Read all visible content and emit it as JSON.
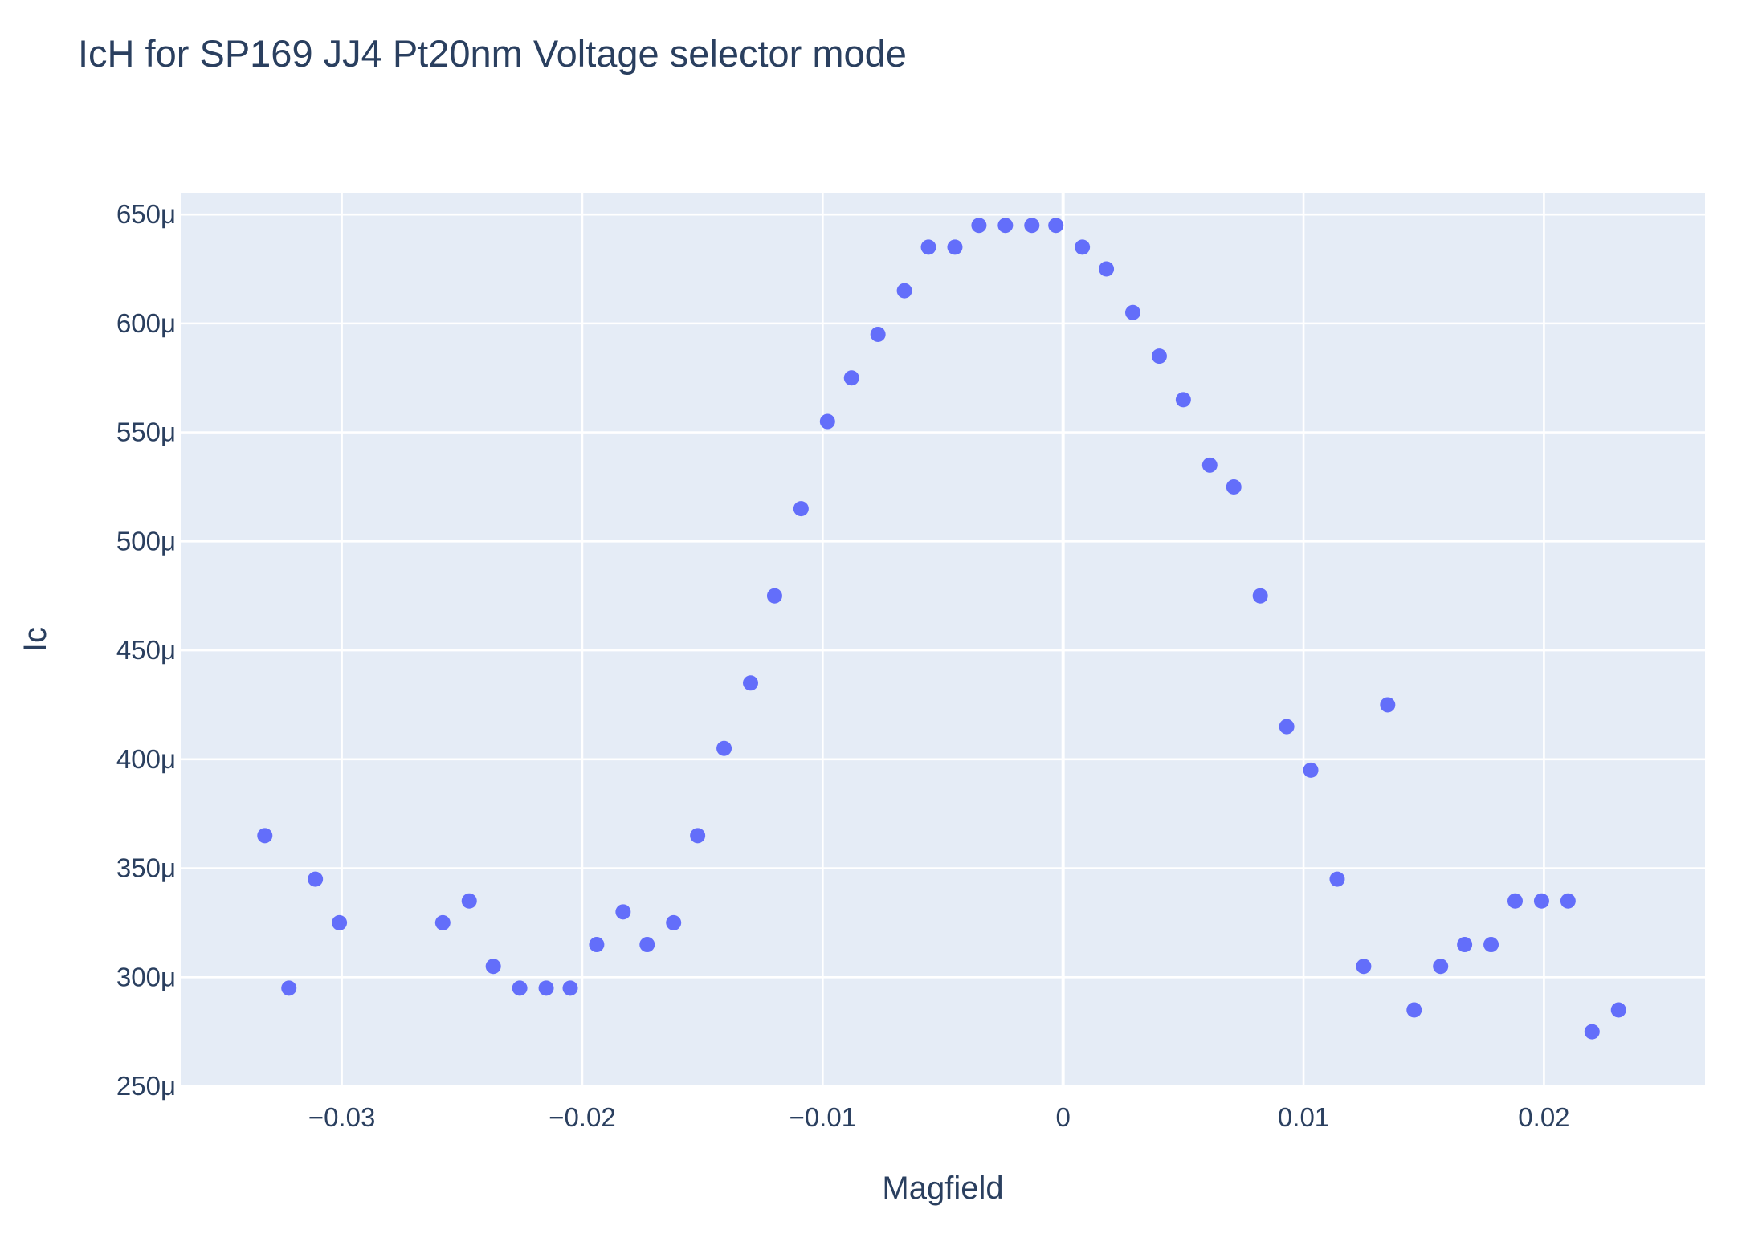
{
  "colors": {
    "paper": "#ffffff",
    "plot_background": "#e5ecf6",
    "grid": "#ffffff",
    "text": "#2a3f5f",
    "marker": "#636efa"
  },
  "chart_data": {
    "type": "scatter",
    "title": "IcH for SP169 JJ4 Pt20nm Voltage selector mode",
    "xlabel": "Magfield",
    "ylabel": "Ic",
    "xlim": [
      -0.0367,
      0.0267
    ],
    "ylim": [
      0.00025,
      0.00066
    ],
    "x_ticks": [
      -0.03,
      -0.02,
      -0.01,
      0,
      0.01,
      0.02
    ],
    "x_tick_labels": [
      "−0.03",
      "−0.02",
      "−0.01",
      "0",
      "0.01",
      "0.02"
    ],
    "y_ticks": [
      0.00025,
      0.0003,
      0.00035,
      0.0004,
      0.00045,
      0.0005,
      0.00055,
      0.0006,
      0.00065
    ],
    "y_tick_labels": [
      "250μ",
      "300μ",
      "350μ",
      "400μ",
      "450μ",
      "500μ",
      "550μ",
      "600μ",
      "650μ"
    ],
    "grid": true,
    "legend": "none",
    "series": [
      {
        "marker_color": "#636efa",
        "points": [
          [
            -0.0332,
            0.000365
          ],
          [
            -0.0322,
            0.000295
          ],
          [
            -0.0311,
            0.000345
          ],
          [
            -0.0301,
            0.000325
          ],
          [
            -0.0258,
            0.000325
          ],
          [
            -0.0247,
            0.000335
          ],
          [
            -0.0237,
            0.000305
          ],
          [
            -0.0226,
            0.000295
          ],
          [
            -0.0215,
            0.000295
          ],
          [
            -0.0205,
            0.000295
          ],
          [
            -0.0194,
            0.000315
          ],
          [
            -0.0183,
            0.00033
          ],
          [
            -0.0173,
            0.000315
          ],
          [
            -0.0162,
            0.000325
          ],
          [
            -0.0152,
            0.000365
          ],
          [
            -0.0141,
            0.000405
          ],
          [
            -0.013,
            0.000435
          ],
          [
            -0.012,
            0.000475
          ],
          [
            -0.0109,
            0.000515
          ],
          [
            -0.0098,
            0.000555
          ],
          [
            -0.0088,
            0.000575
          ],
          [
            -0.0077,
            0.000595
          ],
          [
            -0.0066,
            0.000615
          ],
          [
            -0.0056,
            0.000635
          ],
          [
            -0.0045,
            0.000635
          ],
          [
            -0.0035,
            0.000645
          ],
          [
            -0.0024,
            0.000645
          ],
          [
            -0.0013,
            0.000645
          ],
          [
            -0.0003,
            0.000645
          ],
          [
            0.0008,
            0.000635
          ],
          [
            0.0018,
            0.000625
          ],
          [
            0.0029,
            0.000605
          ],
          [
            0.004,
            0.000585
          ],
          [
            0.005,
            0.000565
          ],
          [
            0.0061,
            0.000535
          ],
          [
            0.0071,
            0.000525
          ],
          [
            0.0082,
            0.000475
          ],
          [
            0.0093,
            0.000415
          ],
          [
            0.0103,
            0.000395
          ],
          [
            0.0114,
            0.000345
          ],
          [
            0.0125,
            0.000305
          ],
          [
            0.0135,
            0.000425
          ],
          [
            0.0146,
            0.000285
          ],
          [
            0.0157,
            0.000305
          ],
          [
            0.0167,
            0.000315
          ],
          [
            0.0178,
            0.000315
          ],
          [
            0.0188,
            0.000335
          ],
          [
            0.0199,
            0.000335
          ],
          [
            0.021,
            0.000335
          ],
          [
            0.022,
            0.000275
          ],
          [
            0.0231,
            0.000285
          ]
        ]
      }
    ]
  }
}
